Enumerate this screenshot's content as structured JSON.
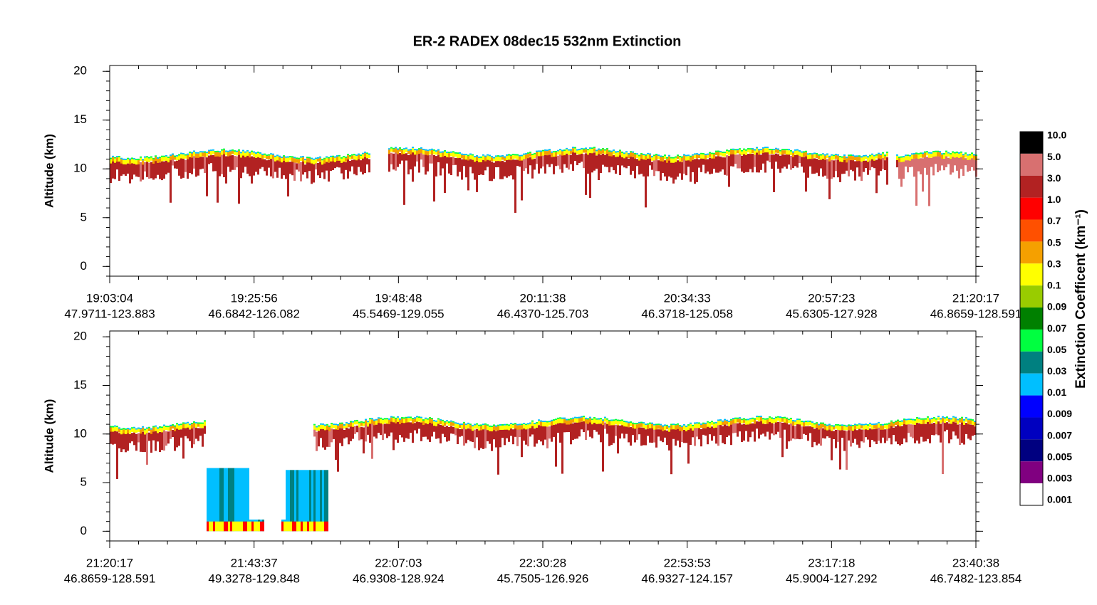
{
  "title": "ER-2  RADEX  08dec15  532nm Extinction",
  "chart_data": [
    {
      "type": "curtain",
      "y_label": "Altitude (km)",
      "ylim": [
        -1,
        20.6
      ],
      "yticks": [
        0,
        5,
        10,
        15,
        20
      ],
      "x_tick_labels": [
        [
          "19:03:04",
          "47.9711-123.883"
        ],
        [
          "19:25:56",
          "46.6842-126.082"
        ],
        [
          "19:48:48",
          "45.5469-129.055"
        ],
        [
          "20:11:38",
          "46.4370-125.703"
        ],
        [
          "20:34:33",
          "46.3718-125.058"
        ],
        [
          "20:57:23",
          "45.6305-127.928"
        ],
        [
          "21:20:17",
          "46.8659-128.591"
        ]
      ]
    },
    {
      "type": "curtain",
      "y_label": "Altitude (km)",
      "ylim": [
        -1,
        20.6
      ],
      "yticks": [
        0,
        5,
        10,
        15,
        20
      ],
      "x_tick_labels": [
        [
          "21:20:17",
          "46.8659-128.591"
        ],
        [
          "21:43:37",
          "49.3278-129.848"
        ],
        [
          "22:07:03",
          "46.9308-128.924"
        ],
        [
          "22:30:28",
          "45.7505-126.926"
        ],
        [
          "22:53:53",
          "46.9327-124.157"
        ],
        [
          "23:17:18",
          "45.9004-127.292"
        ],
        [
          "23:40:38",
          "46.7482-123.854"
        ]
      ]
    }
  ],
  "colorbar": {
    "label": "Extinction Coefficent (km⁻¹)",
    "colors": [
      "#000000",
      "#d87070",
      "#b22222",
      "#ff0000",
      "#ff5000",
      "#f5a000",
      "#ffff00",
      "#99cc00",
      "#008000",
      "#00ff40",
      "#008080",
      "#00bfff",
      "#0000ff",
      "#0000c0",
      "#000080",
      "#800080",
      "#ffffff"
    ],
    "ticks": [
      {
        "value": 10,
        "label": "10.0"
      },
      {
        "value": 5,
        "label": "5.0"
      },
      {
        "value": 3,
        "label": "3.0"
      },
      {
        "value": 1,
        "label": "1.0"
      },
      0.7,
      0.5,
      0.3,
      0.1,
      0.09,
      0.07,
      0.05,
      0.03,
      0.01,
      0.009,
      0.007,
      0.005,
      0.003,
      0.001
    ]
  }
}
